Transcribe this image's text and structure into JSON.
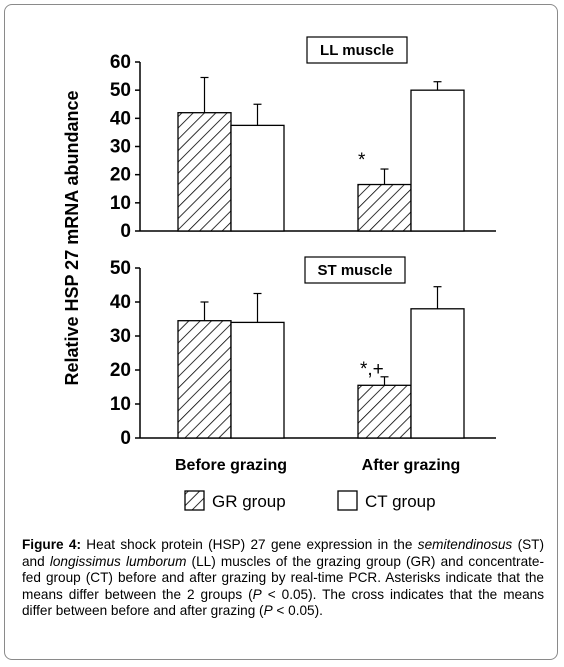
{
  "ylabel": "Relative HSP 27 mRNA abundance",
  "chart_data": [
    {
      "type": "bar",
      "title": "LL muscle",
      "categories": [
        "Before grazing",
        "After grazing"
      ],
      "ylim": [
        0,
        60
      ],
      "yticks": [
        0,
        10,
        20,
        30,
        40,
        50,
        60
      ],
      "series": [
        {
          "name": "GR group",
          "values": [
            42,
            16.5
          ],
          "errors": [
            12.5,
            5.5
          ],
          "fill": "hatch"
        },
        {
          "name": "CT group",
          "values": [
            37.5,
            50
          ],
          "errors": [
            7.5,
            3
          ],
          "fill": "#ffffff"
        }
      ],
      "annotations": [
        {
          "category": 1,
          "series": 0,
          "text": "*"
        }
      ]
    },
    {
      "type": "bar",
      "title": "ST muscle",
      "categories": [
        "Before grazing",
        "After grazing"
      ],
      "ylim": [
        0,
        50
      ],
      "yticks": [
        0,
        10,
        20,
        30,
        40,
        50
      ],
      "series": [
        {
          "name": "GR group",
          "values": [
            34.5,
            15.5
          ],
          "errors": [
            5.5,
            2.5
          ],
          "fill": "hatch"
        },
        {
          "name": "CT group",
          "values": [
            34,
            38
          ],
          "errors": [
            8.5,
            6.5
          ],
          "fill": "#ffffff"
        }
      ],
      "annotations": [
        {
          "category": 1,
          "series": 0,
          "text": "*,+"
        }
      ]
    }
  ],
  "caption": {
    "parts": [
      {
        "text": "Figure 4:",
        "style": "bold"
      },
      {
        "text": " Heat shock protein (HSP) 27 gene expression in the ",
        "style": "normal"
      },
      {
        "text": "semitendinosus",
        "style": "italic"
      },
      {
        "text": " (ST) and ",
        "style": "normal"
      },
      {
        "text": "longissimus lumborum",
        "style": "italic"
      },
      {
        "text": " (LL) muscles of the grazing group (GR) and concentrate-fed group (CT) before and after grazing by real-time PCR. Asterisks indicate that the means differ between the 2 groups (",
        "style": "normal"
      },
      {
        "text": "P",
        "style": "italic"
      },
      {
        "text": " < 0.05). The cross indicates that the means differ between before and after grazing (",
        "style": "normal"
      },
      {
        "text": "P",
        "style": "italic"
      },
      {
        "text": " < 0.05).",
        "style": "normal"
      }
    ]
  }
}
